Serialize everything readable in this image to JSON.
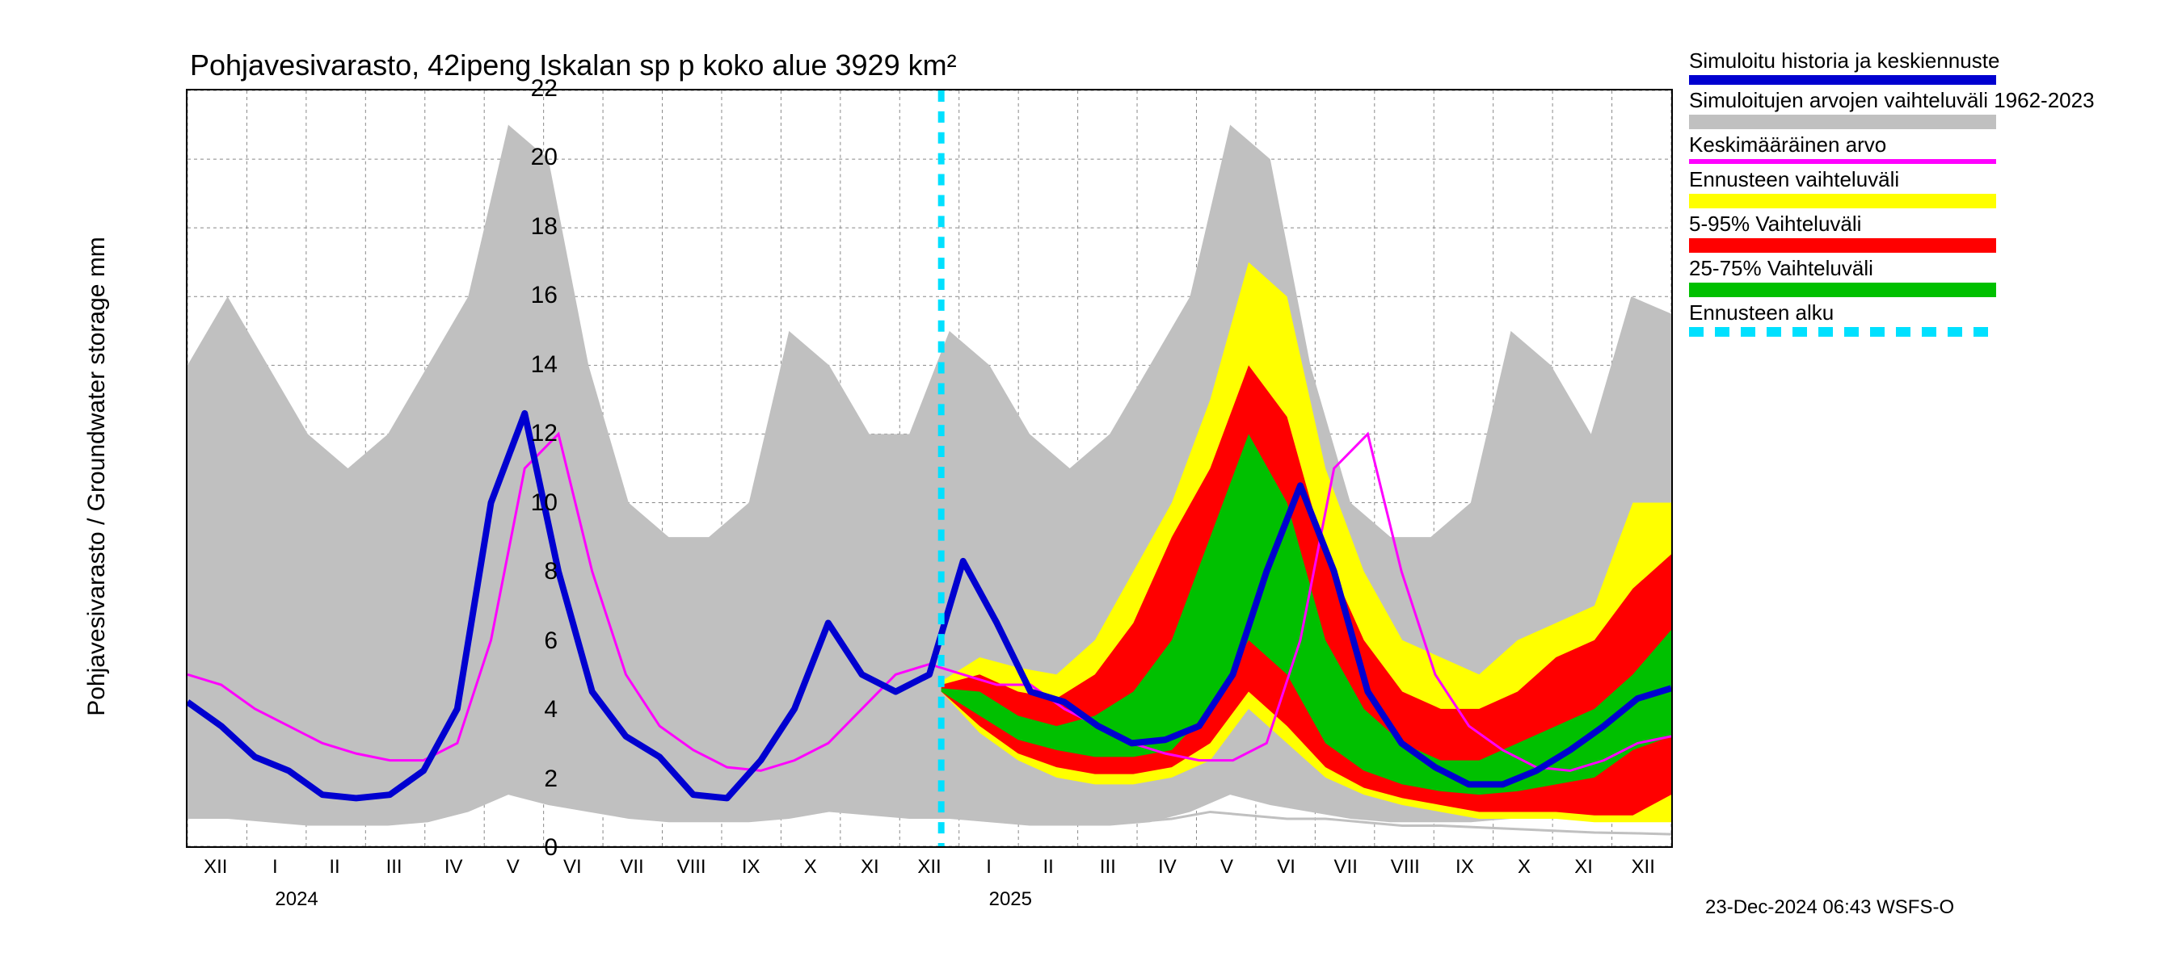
{
  "title": "Pohjavesivarasto, 42ipeng Iskalan sp p koko alue 3929 km²",
  "y_axis_label": "Pohjavesivarasto / Groundwater storage    mm",
  "footer": "23-Dec-2024 06:43 WSFS-O",
  "chart": {
    "type": "line-band",
    "ylim": [
      0,
      22
    ],
    "ytick_step": 2,
    "yticks": [
      0,
      2,
      4,
      6,
      8,
      10,
      12,
      14,
      16,
      18,
      20,
      22
    ],
    "x_months": [
      "XII",
      "I",
      "II",
      "III",
      "IV",
      "V",
      "VI",
      "VII",
      "VIII",
      "IX",
      "X",
      "XI",
      "XII",
      "I",
      "II",
      "III",
      "IV",
      "V",
      "VI",
      "VII",
      "VIII",
      "IX",
      "X",
      "XI",
      "XII"
    ],
    "year_labels": [
      {
        "label": "2024",
        "month_idx": 1
      },
      {
        "label": "2025",
        "month_idx": 13
      }
    ],
    "forecast_start_idx": 12.7,
    "colors": {
      "background": "#ffffff",
      "grid": "#888888",
      "gray_band": "#c0c0c0",
      "yellow_band": "#ffff00",
      "red_band": "#ff0000",
      "green_band": "#00c000",
      "blue_line": "#0000d0",
      "magenta_line": "#ff00ff",
      "cyan_dash": "#00e0ff",
      "gray_line": "#c0c0c0",
      "text": "#000000"
    },
    "line_widths": {
      "blue": 8,
      "magenta": 3,
      "cyan_dash": 8,
      "gray_line": 3
    },
    "gray_band": {
      "upper": [
        14,
        16,
        14,
        12,
        11,
        12,
        14,
        16,
        21,
        20,
        14,
        10,
        9,
        9,
        10,
        15,
        14,
        12,
        12,
        15,
        14,
        12,
        11,
        12,
        14,
        16,
        21,
        20,
        14,
        10,
        9,
        9,
        10,
        15,
        14,
        12,
        16,
        15.5
      ],
      "lower": [
        0.8,
        0.8,
        0.7,
        0.6,
        0.6,
        0.6,
        0.7,
        1,
        1.5,
        1.2,
        1,
        0.8,
        0.7,
        0.7,
        0.7,
        0.8,
        1,
        0.9,
        0.8,
        0.8,
        0.7,
        0.6,
        0.6,
        0.6,
        0.7,
        1,
        1.5,
        1.2,
        1,
        0.8,
        0.7,
        0.7,
        0.7,
        0.8,
        1,
        0.9,
        0.8,
        0.8
      ]
    },
    "yellow_band": {
      "upper": [
        4.8,
        5.5,
        5.2,
        5.0,
        6,
        8,
        10,
        13,
        17,
        16,
        11,
        8,
        6,
        5.5,
        5,
        6,
        6.5,
        7,
        10,
        10
      ],
      "lower": [
        4.5,
        3.3,
        2.5,
        2.0,
        1.8,
        1.8,
        2,
        2.5,
        4,
        3,
        2,
        1.5,
        1.2,
        1,
        0.8,
        0.8,
        0.8,
        0.7,
        0.7,
        0.7
      ]
    },
    "red_band": {
      "upper": [
        4.7,
        5.0,
        4.5,
        4.3,
        5,
        6.5,
        9,
        11,
        14,
        12.5,
        8.5,
        6,
        4.5,
        4,
        4,
        4.5,
        5.5,
        6,
        7.5,
        8.5
      ],
      "lower": [
        4.5,
        3.5,
        2.7,
        2.3,
        2.1,
        2.1,
        2.3,
        3,
        4.5,
        3.5,
        2.3,
        1.7,
        1.4,
        1.2,
        1,
        1,
        1,
        0.9,
        0.9,
        1.5
      ]
    },
    "green_band": {
      "upper": [
        4.6,
        4.5,
        3.8,
        3.5,
        3.8,
        4.5,
        6,
        9,
        12,
        10,
        6,
        4,
        3,
        2.5,
        2.5,
        3,
        3.5,
        4,
        5,
        6.3
      ],
      "lower": [
        4.5,
        3.8,
        3.1,
        2.8,
        2.6,
        2.6,
        2.8,
        4,
        6,
        5,
        3,
        2.2,
        1.8,
        1.6,
        1.5,
        1.6,
        1.8,
        2,
        2.8,
        3.2
      ]
    },
    "blue_line": [
      4.2,
      3.5,
      2.6,
      2.2,
      1.5,
      1.4,
      1.5,
      2.2,
      4,
      10,
      12.6,
      8,
      4.5,
      3.2,
      2.6,
      1.5,
      1.4,
      2.5,
      4,
      6.5,
      5,
      4.5,
      5,
      8.3,
      6.5,
      4.5,
      4.2,
      3.5,
      3.0,
      3.1,
      3.5,
      5,
      8,
      10.5,
      8,
      4.5,
      3,
      2.3,
      1.8,
      1.8,
      2.2,
      2.8,
      3.5,
      4.3,
      4.6
    ],
    "magenta_line": [
      5,
      4.7,
      4,
      3.5,
      3,
      2.7,
      2.5,
      2.5,
      3,
      6,
      11,
      12,
      8,
      5,
      3.5,
      2.8,
      2.3,
      2.2,
      2.5,
      3,
      4,
      5,
      5.3,
      5,
      4.7,
      4.7,
      4,
      3.5,
      3,
      2.7,
      2.5,
      2.5,
      3,
      6,
      11,
      12,
      8,
      5,
      3.5,
      2.8,
      2.3,
      2.2,
      2.5,
      3,
      3.2
    ],
    "gray_lower_line": [
      1.2,
      1,
      0.8,
      0.7,
      0.7,
      0.7,
      0.8,
      1,
      0.9,
      0.8,
      0.8,
      0.7,
      0.6,
      0.6,
      0.55,
      0.5,
      0.45,
      0.4,
      0.38,
      0.35
    ]
  },
  "legend": {
    "items": [
      {
        "label": "Simuloitu historia ja keskiennuste",
        "type": "line",
        "color": "#0000d0",
        "thick": true
      },
      {
        "label": "Simuloitujen arvojen vaihteluväli 1962-2023",
        "type": "band",
        "color": "#c0c0c0"
      },
      {
        "label": "Keskimääräinen arvo",
        "type": "line",
        "color": "#ff00ff"
      },
      {
        "label": "Ennusteen vaihteluväli",
        "type": "band",
        "color": "#ffff00"
      },
      {
        "label": "5-95% Vaihteluväli",
        "type": "band",
        "color": "#ff0000"
      },
      {
        "label": "25-75% Vaihteluväli",
        "type": "band",
        "color": "#00c000"
      },
      {
        "label": "Ennusteen alku",
        "type": "dash",
        "color": "#00e0ff"
      }
    ]
  }
}
